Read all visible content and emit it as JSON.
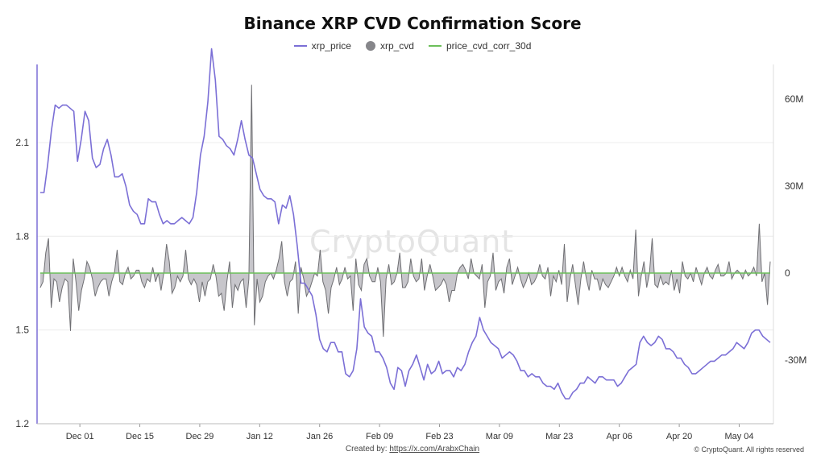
{
  "chart_data": {
    "type": "line",
    "title": "Binance XRP CVD Confirmation Score",
    "watermark": "CryptoQuant",
    "footer": {
      "created_prefix": "Created by:",
      "created_link": "https://x.com/ArabxChain",
      "copyright": "© CryptoQuant. All rights reserved"
    },
    "colors": {
      "xrp_price": "#7b6fd6",
      "xrp_cvd_line": "#6f6f73",
      "xrp_cvd_fill": "#bdbcc2",
      "legend_cvd": "#86868a",
      "price_cvd_corr_30d": "#6cbf5a",
      "grid": "#ececec"
    },
    "legend": [
      "xrp_price",
      "xrp_cvd",
      "price_cvd_corr_30d"
    ],
    "x_ticks": [
      "Dec 01",
      "Dec 15",
      "Dec 29",
      "Jan 12",
      "Jan 26",
      "Feb 09",
      "Feb 23",
      "Mar 09",
      "Mar 23",
      "Apr 06",
      "Apr 20",
      "May 04"
    ],
    "x_range": [
      "2024-11-21",
      "2025-05-12"
    ],
    "left_axis": {
      "ticks": [
        "1.2",
        "1.5",
        "1.8",
        "2.1"
      ],
      "ylim": [
        1.2,
        2.35
      ]
    },
    "right_axis": {
      "ticks": [
        "60M",
        "30M",
        "0",
        "-30M"
      ],
      "ylim": [
        -52,
        72
      ]
    },
    "series": [
      {
        "name": "xrp_price",
        "axis": "left",
        "values": [
          1.94,
          1.94,
          2.03,
          2.14,
          2.22,
          2.21,
          2.22,
          2.22,
          2.21,
          2.2,
          2.04,
          2.11,
          2.2,
          2.17,
          2.05,
          2.02,
          2.03,
          2.08,
          2.11,
          2.06,
          1.99,
          1.99,
          2.0,
          1.96,
          1.9,
          1.88,
          1.87,
          1.84,
          1.84,
          1.92,
          1.91,
          1.91,
          1.87,
          1.84,
          1.85,
          1.84,
          1.84,
          1.85,
          1.86,
          1.85,
          1.84,
          1.86,
          1.94,
          2.06,
          2.12,
          2.23,
          2.4,
          2.3,
          2.12,
          2.11,
          2.09,
          2.08,
          2.06,
          2.11,
          2.17,
          2.11,
          2.06,
          2.05,
          2.0,
          1.95,
          1.93,
          1.92,
          1.92,
          1.91,
          1.84,
          1.9,
          1.89,
          1.93,
          1.87,
          1.77,
          1.65,
          1.65,
          1.63,
          1.61,
          1.55,
          1.47,
          1.44,
          1.43,
          1.46,
          1.46,
          1.43,
          1.43,
          1.36,
          1.35,
          1.37,
          1.44,
          1.6,
          1.51,
          1.49,
          1.48,
          1.43,
          1.43,
          1.41,
          1.38,
          1.33,
          1.31,
          1.38,
          1.37,
          1.32,
          1.37,
          1.39,
          1.42,
          1.38,
          1.34,
          1.39,
          1.36,
          1.37,
          1.4,
          1.36,
          1.37,
          1.37,
          1.35,
          1.38,
          1.37,
          1.39,
          1.43,
          1.46,
          1.48,
          1.54,
          1.5,
          1.48,
          1.46,
          1.45,
          1.44,
          1.41,
          1.42,
          1.43,
          1.42,
          1.4,
          1.37,
          1.37,
          1.35,
          1.36,
          1.35,
          1.35,
          1.33,
          1.32,
          1.32,
          1.31,
          1.33,
          1.3,
          1.28,
          1.28,
          1.3,
          1.31,
          1.33,
          1.33,
          1.35,
          1.34,
          1.33,
          1.35,
          1.35,
          1.34,
          1.34,
          1.34,
          1.32,
          1.33,
          1.35,
          1.37,
          1.38,
          1.39,
          1.46,
          1.48,
          1.46,
          1.45,
          1.46,
          1.48,
          1.47,
          1.44,
          1.44,
          1.43,
          1.41,
          1.41,
          1.39,
          1.38,
          1.36,
          1.36,
          1.37,
          1.38,
          1.39,
          1.4,
          1.4,
          1.41,
          1.42,
          1.42,
          1.43,
          1.44,
          1.46,
          1.45,
          1.44,
          1.46,
          1.49,
          1.5,
          1.5,
          1.48,
          1.47,
          1.46
        ]
      },
      {
        "name": "xrp_cvd",
        "axis": "right",
        "values": [
          -5,
          -3,
          7,
          12,
          -12,
          -2,
          -3,
          -10,
          -5,
          -2,
          -3,
          -20,
          5,
          -3,
          -13,
          -6,
          -2,
          4,
          2,
          -2,
          -8,
          -5,
          -3,
          -2,
          -2,
          -8,
          -3,
          0,
          8,
          -3,
          -4,
          0,
          2,
          -2,
          -1,
          1,
          1,
          -3,
          -5,
          -2,
          -3,
          2,
          -3,
          0,
          -6,
          0,
          10,
          4,
          -7,
          -5,
          -1,
          -3,
          -1,
          8,
          -2,
          -4,
          -2,
          -4,
          -10,
          -3,
          -8,
          -3,
          -2,
          3,
          -1,
          -8,
          -7,
          -13,
          -3,
          4,
          -12,
          -4,
          -6,
          -3,
          -2,
          -12,
          -2,
          65,
          -18,
          -2,
          -10,
          -8,
          -3,
          -1,
          0,
          -2,
          1,
          5,
          11,
          -3,
          -8,
          -3,
          -2,
          4,
          -14,
          2,
          -2,
          -8,
          -6,
          -3,
          0,
          -1,
          8,
          -3,
          -6,
          -14,
          -5,
          -2,
          2,
          -4,
          -2,
          2,
          -2,
          -1,
          -13,
          5,
          -4,
          -6,
          3,
          5,
          -1,
          -3,
          -3,
          2,
          -3,
          -22,
          -2,
          3,
          -4,
          -3,
          0,
          7,
          -5,
          -5,
          -3,
          5,
          -1,
          -3,
          -2,
          5,
          -6,
          -1,
          3,
          -1,
          -6,
          -5,
          -4,
          -2,
          -4,
          -10,
          -6,
          -6,
          0,
          2,
          3,
          1,
          -2,
          5,
          0,
          -1,
          -2,
          3,
          -12,
          -3,
          -1,
          7,
          -6,
          -3,
          -2,
          -7,
          2,
          5,
          -4,
          -1,
          2,
          -2,
          -5,
          -3,
          0,
          -4,
          -3,
          -1,
          3,
          -1,
          -2,
          2,
          -8,
          -1,
          -3,
          1,
          -4,
          10,
          -10,
          -2,
          3,
          -4,
          -11,
          -2,
          4,
          -2,
          -6,
          1,
          -2,
          -2,
          -6,
          -2,
          -4,
          -5,
          -3,
          -1,
          2,
          -1,
          2,
          -1,
          -3,
          1,
          -2,
          15,
          -8,
          -1,
          4,
          -5,
          0,
          12,
          -4,
          -5,
          -1,
          -4,
          -3,
          -4,
          1,
          -6,
          -2,
          -7,
          4,
          -1,
          -2,
          0,
          -3,
          2,
          -1,
          -4,
          0,
          2,
          -1,
          -2,
          1,
          3,
          -1,
          -1,
          0,
          4,
          -2,
          0,
          1,
          0,
          -2,
          1,
          -1,
          0,
          2,
          -1,
          17,
          -3,
          0,
          -11,
          4
        ],
        "scale": "million"
      },
      {
        "name": "price_cvd_corr_30d",
        "axis": "right",
        "values": [
          0
        ]
      }
    ]
  }
}
